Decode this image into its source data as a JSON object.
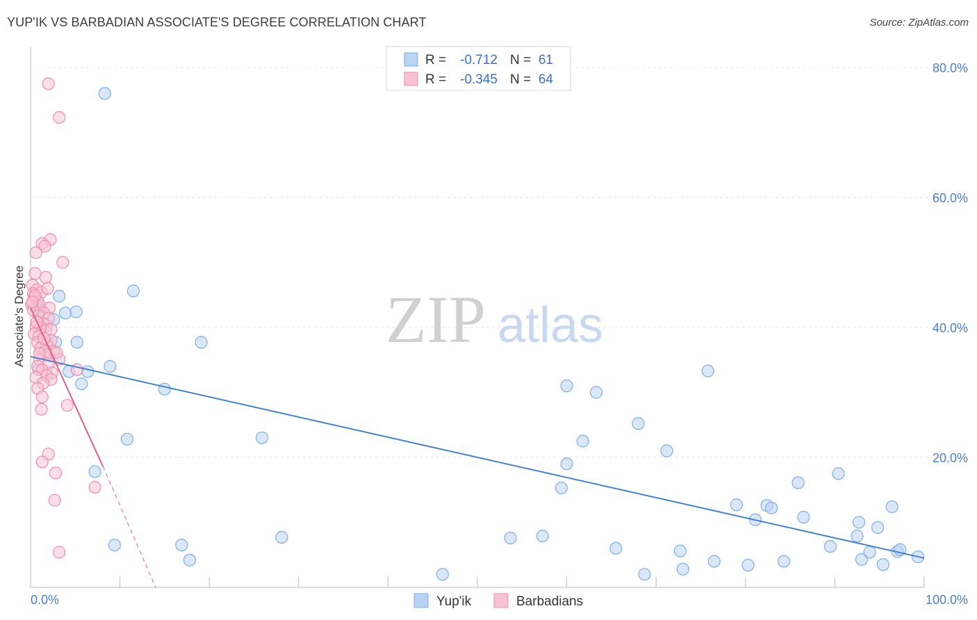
{
  "chart_data": {
    "type": "scatter",
    "title": "YUP'IK VS BARBADIAN ASSOCIATE'S DEGREE CORRELATION CHART",
    "source": "Source: ZipAtlas.com",
    "xlabel": "",
    "ylabel": "Associate's Degree",
    "xlim": [
      0,
      100
    ],
    "ylim": [
      0,
      80
    ],
    "x_tick_labels": [
      "0.0%",
      "100.0%"
    ],
    "y_ticks": [
      20,
      40,
      60,
      80
    ],
    "y_tick_labels": [
      "20.0%",
      "40.0%",
      "60.0%",
      "80.0%"
    ],
    "grid": true,
    "legend": {
      "placement": "top-center",
      "rows": [
        {
          "r_label": "R =",
          "r_value": "-0.712",
          "n_label": "N =",
          "n_value": "61"
        },
        {
          "r_label": "R =",
          "r_value": "-0.345",
          "n_label": "N =",
          "n_value": "64"
        }
      ]
    },
    "watermark": {
      "part1": "ZIP",
      "part2": "atlas"
    },
    "series": [
      {
        "name": "Yup'ik",
        "color": "#7aaee8",
        "fill": "#b9d3f3",
        "line_color": "#3f7fd6",
        "trend": {
          "x0": 0,
          "y0": 35.5,
          "x1": 100,
          "y1": 4.5
        },
        "points": [
          [
            8.3,
            76.0
          ],
          [
            1.0,
            43.0
          ],
          [
            3.2,
            44.8
          ],
          [
            3.9,
            42.2
          ],
          [
            5.1,
            42.4
          ],
          [
            11.5,
            45.6
          ],
          [
            1.8,
            40.3
          ],
          [
            2.8,
            37.7
          ],
          [
            5.2,
            37.7
          ],
          [
            19.1,
            37.7
          ],
          [
            0.9,
            33.5
          ],
          [
            4.3,
            33.2
          ],
          [
            6.4,
            33.2
          ],
          [
            8.9,
            34.0
          ],
          [
            5.7,
            31.3
          ],
          [
            15.0,
            30.5
          ],
          [
            10.8,
            22.8
          ],
          [
            25.9,
            23.0
          ],
          [
            7.2,
            17.8
          ],
          [
            9.4,
            6.5
          ],
          [
            16.9,
            6.5
          ],
          [
            17.8,
            4.2
          ],
          [
            28.1,
            7.7
          ],
          [
            60.0,
            31.0
          ],
          [
            63.3,
            30.0
          ],
          [
            75.8,
            33.3
          ],
          [
            68.0,
            25.2
          ],
          [
            61.8,
            22.5
          ],
          [
            71.2,
            21.0
          ],
          [
            60.0,
            19.0
          ],
          [
            59.4,
            15.3
          ],
          [
            53.7,
            7.6
          ],
          [
            57.3,
            7.9
          ],
          [
            65.5,
            6.0
          ],
          [
            68.7,
            2.0
          ],
          [
            72.7,
            5.6
          ],
          [
            73.0,
            2.8
          ],
          [
            76.5,
            4.0
          ],
          [
            79.0,
            12.7
          ],
          [
            81.1,
            10.4
          ],
          [
            82.4,
            12.6
          ],
          [
            82.9,
            12.2
          ],
          [
            80.3,
            3.4
          ],
          [
            84.3,
            4.0
          ],
          [
            85.9,
            16.1
          ],
          [
            86.5,
            10.8
          ],
          [
            89.5,
            6.3
          ],
          [
            90.4,
            17.5
          ],
          [
            92.5,
            7.9
          ],
          [
            92.7,
            10.0
          ],
          [
            93.0,
            4.3
          ],
          [
            93.9,
            5.4
          ],
          [
            94.8,
            9.2
          ],
          [
            95.4,
            3.5
          ],
          [
            96.4,
            12.4
          ],
          [
            97.0,
            5.5
          ],
          [
            97.3,
            5.8
          ],
          [
            99.3,
            4.7
          ],
          [
            46.1,
            2.0
          ],
          [
            1.2,
            42.6
          ],
          [
            2.6,
            41.2
          ]
        ]
      },
      {
        "name": "Barbadians",
        "color": "#f08cab",
        "fill": "#f8c2d3",
        "line_color": "#e0608a",
        "trend": {
          "x0": 0,
          "y0": 43.0,
          "x1": 8.1,
          "y1": 18.6
        },
        "trend_dashed": {
          "x0": 8.1,
          "y0": 18.6,
          "x1": 14.0,
          "y1": 0
        },
        "points": [
          [
            2.0,
            77.5
          ],
          [
            3.2,
            72.3
          ],
          [
            2.2,
            53.5
          ],
          [
            1.3,
            52.9
          ],
          [
            1.6,
            52.5
          ],
          [
            0.6,
            51.5
          ],
          [
            3.6,
            50.0
          ],
          [
            0.5,
            48.3
          ],
          [
            1.7,
            47.7
          ],
          [
            0.2,
            46.5
          ],
          [
            0.7,
            45.8
          ],
          [
            0.3,
            45.2
          ],
          [
            1.2,
            45.4
          ],
          [
            1.9,
            46.0
          ],
          [
            0.4,
            44.6
          ],
          [
            0.8,
            44.0
          ],
          [
            0.1,
            43.5
          ],
          [
            1.1,
            43.3
          ],
          [
            2.1,
            43.0
          ],
          [
            0.3,
            42.7
          ],
          [
            1.5,
            42.2
          ],
          [
            0.9,
            41.8
          ],
          [
            2.0,
            41.4
          ],
          [
            1.4,
            40.6
          ],
          [
            0.6,
            40.1
          ],
          [
            1.1,
            39.9
          ],
          [
            1.7,
            39.5
          ],
          [
            2.3,
            39.7
          ],
          [
            0.4,
            39.0
          ],
          [
            0.9,
            38.6
          ],
          [
            2.3,
            38.0
          ],
          [
            0.8,
            37.7
          ],
          [
            1.8,
            37.4
          ],
          [
            1.1,
            36.8
          ],
          [
            1.6,
            36.3
          ],
          [
            2.6,
            36.3
          ],
          [
            1.9,
            35.9
          ],
          [
            1.0,
            35.0
          ],
          [
            3.2,
            35.1
          ],
          [
            2.0,
            34.4
          ],
          [
            0.8,
            34.0
          ],
          [
            1.3,
            33.4
          ],
          [
            2.4,
            33.0
          ],
          [
            5.2,
            33.5
          ],
          [
            1.8,
            32.6
          ],
          [
            0.6,
            32.3
          ],
          [
            2.3,
            32.0
          ],
          [
            1.4,
            31.4
          ],
          [
            0.8,
            30.6
          ],
          [
            1.3,
            29.3
          ],
          [
            4.1,
            28.0
          ],
          [
            1.2,
            27.4
          ],
          [
            2.0,
            20.5
          ],
          [
            1.3,
            19.3
          ],
          [
            2.8,
            17.6
          ],
          [
            7.2,
            15.4
          ],
          [
            2.7,
            13.4
          ],
          [
            3.2,
            5.4
          ],
          [
            0.5,
            44.9
          ],
          [
            0.2,
            43.9
          ],
          [
            1.5,
            38.3
          ],
          [
            2.9,
            36.1
          ],
          [
            0.7,
            40.8
          ],
          [
            1.0,
            36.0
          ]
        ]
      }
    ]
  }
}
